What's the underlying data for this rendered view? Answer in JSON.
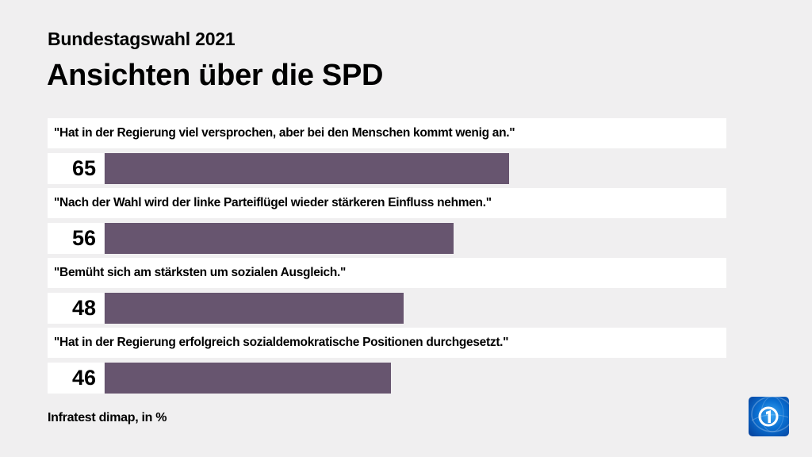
{
  "header": {
    "subtitle": "Bundestagswahl 2021",
    "title": "Ansichten über die SPD"
  },
  "items": [
    {
      "label": "\"Hat in der Regierung viel versprochen, aber bei den Menschen kommt wenig an.\"",
      "value": "65"
    },
    {
      "label": "\"Nach der Wahl wird der linke Parteiflügel wieder stärkeren Einfluss nehmen.\"",
      "value": "56"
    },
    {
      "label": "\"Bemüht sich am stärksten um sozialen Ausgleich.\"",
      "value": "48"
    },
    {
      "label": "\"Hat in der Regierung erfolgreich sozialdemokratische Positionen durchgesetzt.\"",
      "value": "46"
    }
  ],
  "footer": {
    "source": "Infratest dimap, in %",
    "logo_icon": "tagesschau-logo-icon"
  },
  "colors": {
    "bar": "#67556f",
    "background": "#f0eff0",
    "label_box": "#ffffff"
  },
  "chart_data": {
    "type": "bar",
    "orientation": "horizontal",
    "title": "Ansichten über die SPD",
    "subtitle": "Bundestagswahl 2021",
    "categories": [
      "\"Hat in der Regierung viel versprochen, aber bei den Menschen kommt wenig an.\"",
      "\"Nach der Wahl wird der linke Parteiflügel wieder stärkeren Einfluss nehmen.\"",
      "\"Bemüht sich am stärksten um sozialen Ausgleich.\"",
      "\"Hat in der Regierung erfolgreich sozialdemokratische Positionen durchgesetzt.\""
    ],
    "values": [
      65,
      56,
      48,
      46
    ],
    "unit": "%",
    "source": "Infratest dimap, in %",
    "xlabel": "",
    "ylabel": "",
    "xlim": [
      0,
      100
    ],
    "grid": false,
    "legend": null
  }
}
